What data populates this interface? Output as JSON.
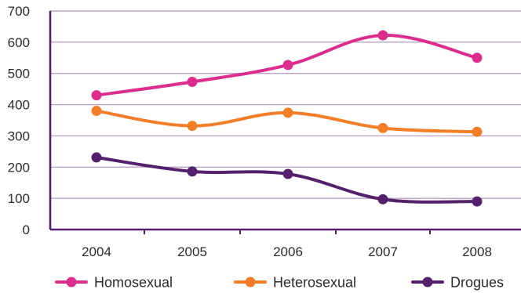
{
  "chart_data": {
    "type": "line",
    "categories": [
      "2004",
      "2005",
      "2006",
      "2007",
      "2008"
    ],
    "ylim": [
      0,
      700
    ],
    "yticks": [
      0,
      100,
      200,
      300,
      400,
      500,
      600,
      700
    ],
    "grid": true,
    "legend_position": "bottom",
    "series": [
      {
        "name": "Homosexual",
        "color": "#dd2d8c",
        "values": [
          430,
          473,
          527,
          622,
          550
        ]
      },
      {
        "name": "Heterosexual",
        "color": "#f47d27",
        "values": [
          380,
          332,
          374,
          325,
          313
        ]
      },
      {
        "name": "Drogues",
        "color": "#55206b",
        "values": [
          231,
          186,
          178,
          97,
          90
        ]
      }
    ],
    "colors": {
      "axis": "#55206b",
      "grid": "#b9a3c4",
      "text": "#2b2b2b"
    }
  }
}
